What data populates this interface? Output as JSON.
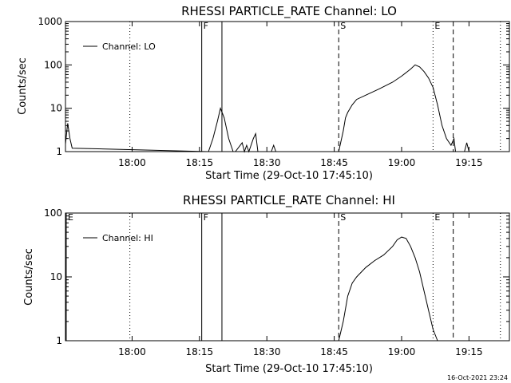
{
  "chart_data": [
    {
      "type": "line",
      "title": "RHESSI PARTICLE_RATE Channel: LO",
      "xlabel": "Start Time (29-Oct-10 17:45:10)",
      "ylabel": "Counts/sec",
      "y_scale": "log",
      "ylim": [
        1,
        1000
      ],
      "xlim": [
        "17:45:10",
        "19:24:00"
      ],
      "x_ticks": [
        "18:00",
        "18:15",
        "18:30",
        "18:45",
        "19:00",
        "19:15"
      ],
      "y_ticks": [
        "1",
        "10",
        "100",
        "1000"
      ],
      "legend": {
        "label": "Channel: LO",
        "placement": "top-left"
      },
      "markers": [
        {
          "label": "F",
          "time": "18:15:30",
          "style": "solid"
        },
        {
          "label": "",
          "time": "18:20:00",
          "style": "solid"
        },
        {
          "label": "S",
          "time": "18:46:00",
          "style": "dashed"
        },
        {
          "label": "E",
          "time": "19:07:00",
          "style": "dotted"
        },
        {
          "label": "",
          "time": "19:11:30",
          "style": "dashed"
        },
        {
          "label": "",
          "time": "17:59:30",
          "style": "dotted"
        },
        {
          "label": "",
          "time": "19:22:00",
          "style": "dotted"
        }
      ],
      "series": [
        {
          "name": "Channel: LO",
          "x": [
            "17:45:10",
            "17:45:40",
            "17:46:10",
            "17:46:40",
            "18:17:00",
            "18:18:00",
            "18:19:00",
            "18:19:40",
            "18:20:30",
            "18:21:30",
            "18:22:30",
            "18:23:00",
            "18:24:30",
            "18:25:00",
            "18:25:30",
            "18:26:00",
            "18:27:00",
            "18:27:30",
            "18:28:00",
            "18:31:00",
            "18:31:30",
            "18:32:00",
            "18:46:00",
            "18:47:00",
            "18:47:30",
            "18:48:00",
            "18:49:00",
            "18:50:00",
            "18:52:00",
            "18:55:00",
            "18:58:00",
            "19:00:00",
            "19:02:00",
            "19:03:00",
            "19:04:00",
            "19:05:00",
            "19:06:00",
            "19:07:00",
            "19:08:00",
            "19:09:00",
            "19:10:00",
            "19:11:00",
            "19:11:40",
            "19:12:00",
            "19:14:00",
            "19:14:30",
            "19:15:00"
          ],
          "values": [
            1.5,
            4.5,
            2,
            1.2,
            1,
            2,
            5,
            10,
            6,
            2,
            1,
            1,
            1.6,
            1,
            1.4,
            1,
            2,
            2.6,
            1,
            1,
            1.4,
            1,
            1,
            3,
            6,
            8,
            12,
            16,
            20,
            28,
            40,
            55,
            80,
            100,
            90,
            70,
            50,
            30,
            12,
            4,
            2,
            1.4,
            2,
            1,
            1,
            1.6,
            1
          ]
        }
      ]
    },
    {
      "type": "line",
      "title": "RHESSI PARTICLE_RATE Channel: HI",
      "xlabel": "Start Time (29-Oct-10 17:45:10)",
      "ylabel": "Counts/sec",
      "y_scale": "log",
      "ylim": [
        1,
        100
      ],
      "xlim": [
        "17:45:10",
        "19:24:00"
      ],
      "x_ticks": [
        "18:00",
        "18:15",
        "18:30",
        "18:45",
        "19:00",
        "19:15"
      ],
      "y_ticks": [
        "1",
        "10",
        "100"
      ],
      "legend": {
        "label": "Channel: HI",
        "placement": "top-left"
      },
      "markers": [
        {
          "label": "E",
          "time": "17:45:20",
          "style": "solid"
        },
        {
          "label": "F",
          "time": "18:15:30",
          "style": "solid"
        },
        {
          "label": "",
          "time": "18:20:00",
          "style": "solid"
        },
        {
          "label": "S",
          "time": "18:46:00",
          "style": "dashed"
        },
        {
          "label": "E",
          "time": "19:07:00",
          "style": "dotted"
        },
        {
          "label": "",
          "time": "19:11:30",
          "style": "dashed"
        },
        {
          "label": "",
          "time": "17:59:30",
          "style": "dotted"
        },
        {
          "label": "",
          "time": "19:22:00",
          "style": "dotted"
        }
      ],
      "series": [
        {
          "name": "Channel: HI",
          "x": [
            "18:46:00",
            "18:47:00",
            "18:48:00",
            "18:49:00",
            "18:50:00",
            "18:52:00",
            "18:54:00",
            "18:56:00",
            "18:58:00",
            "18:59:00",
            "19:00:00",
            "19:01:00",
            "19:02:00",
            "19:03:00",
            "19:04:00",
            "19:05:00",
            "19:06:00",
            "19:07:00",
            "19:08:00"
          ],
          "values": [
            1,
            2,
            5,
            8,
            10,
            14,
            18,
            22,
            30,
            38,
            42,
            40,
            30,
            20,
            12,
            6,
            3,
            1.5,
            1
          ]
        }
      ]
    }
  ],
  "footer": {
    "timestamp": "16-Oct-2021 23:24"
  }
}
